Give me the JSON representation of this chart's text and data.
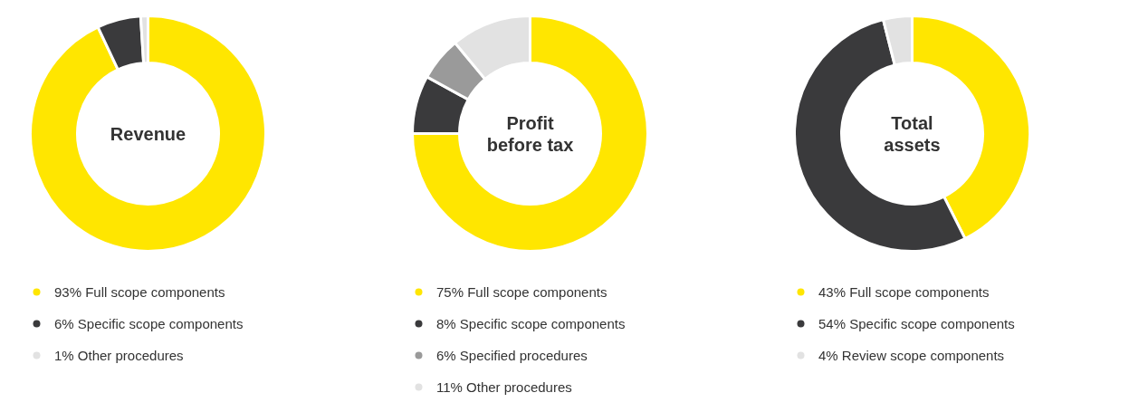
{
  "chart_data": [
    {
      "type": "donut",
      "title": "Revenue",
      "categories": [
        "Full scope components",
        "Specific scope components",
        "Other procedures"
      ],
      "values": [
        93,
        6,
        1
      ],
      "value_labels": [
        "93%",
        "6%",
        "1%"
      ],
      "colors": [
        "#ffe600",
        "#3a3a3c",
        "#e2e2e2"
      ],
      "legend": "bottom"
    },
    {
      "type": "donut",
      "title": "Profit before tax",
      "categories": [
        "Full scope components",
        "Specific scope components",
        "Specified procedures",
        "Other procedures"
      ],
      "values": [
        75,
        8,
        6,
        11
      ],
      "value_labels": [
        "75%",
        "8%",
        "6%",
        "11%"
      ],
      "colors": [
        "#ffe600",
        "#3a3a3c",
        "#9a9a9a",
        "#e2e2e2"
      ],
      "legend": "bottom"
    },
    {
      "type": "donut",
      "title": "Total assets",
      "categories": [
        "Full scope components",
        "Specific scope components",
        "Review scope components"
      ],
      "values": [
        43,
        54,
        4
      ],
      "value_labels": [
        "43%",
        "54%",
        "4%"
      ],
      "colors": [
        "#ffe600",
        "#3a3a3c",
        "#e2e2e2"
      ],
      "legend": "bottom"
    }
  ]
}
